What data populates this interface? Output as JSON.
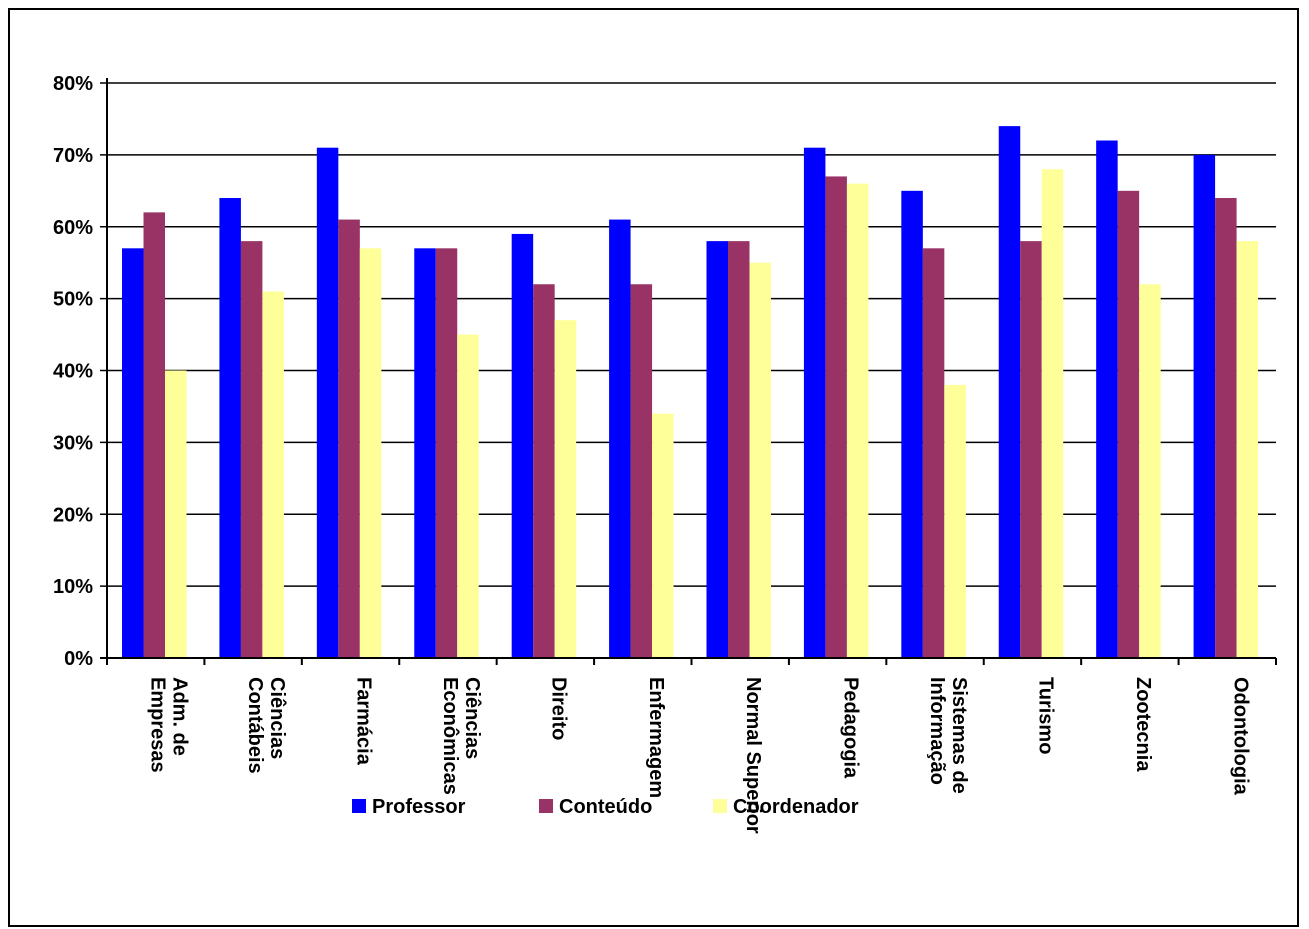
{
  "chart_data": {
    "type": "bar",
    "title": "",
    "xlabel": "",
    "ylabel": "",
    "ylim": [
      0,
      80
    ],
    "ytick_step": 10,
    "yticks": [
      "0%",
      "10%",
      "20%",
      "30%",
      "40%",
      "50%",
      "60%",
      "70%",
      "80%"
    ],
    "grid": "horizontal",
    "legend_position": "bottom",
    "categories": [
      [
        "Adm. de",
        "Empresas"
      ],
      [
        "Ciências",
        "Contábeis"
      ],
      [
        "Farmácia"
      ],
      [
        "Ciências",
        "Econômicas"
      ],
      [
        "Direito"
      ],
      [
        "Enfermagem"
      ],
      [
        "Normal Superior"
      ],
      [
        "Pedagogia"
      ],
      [
        "Sistemas de",
        "Informação"
      ],
      [
        "Turismo"
      ],
      [
        "Zootecnia"
      ],
      [
        "Odontologia"
      ]
    ],
    "series": [
      {
        "name": "Professor",
        "color": "#0000ff",
        "values": [
          57,
          64,
          71,
          57,
          59,
          61,
          58,
          71,
          65,
          74,
          72,
          70
        ]
      },
      {
        "name": "Conteúdo",
        "color": "#993366",
        "values": [
          62,
          58,
          61,
          57,
          52,
          52,
          58,
          67,
          57,
          58,
          65,
          64
        ]
      },
      {
        "name": "Coordenador",
        "color": "#ffff99",
        "values": [
          40,
          51,
          57,
          45,
          47,
          34,
          55,
          66,
          38,
          68,
          52,
          58
        ]
      }
    ]
  }
}
